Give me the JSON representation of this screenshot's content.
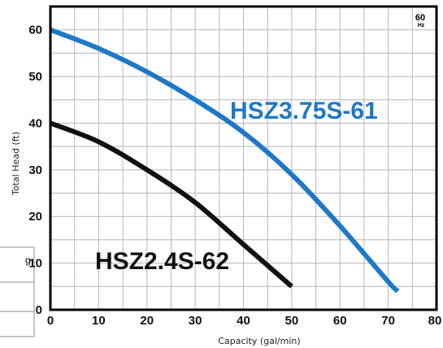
{
  "chart_data": {
    "type": "line",
    "title": "",
    "xlabel": "Capacity (gal/min)",
    "ylabel": "Total Head (ft)",
    "xlim": [
      0,
      80
    ],
    "ylim": [
      0,
      65
    ],
    "x_ticks": [
      0,
      10,
      20,
      30,
      40,
      50,
      60,
      70,
      80
    ],
    "y_ticks": [
      0,
      10,
      20,
      30,
      40,
      50,
      60
    ],
    "grid": true,
    "frequency_badge": {
      "value": "60",
      "unit": "Hz"
    },
    "series": [
      {
        "name": "HSZ3.75S-61",
        "color": "#1e78c8",
        "x": [
          0,
          10,
          20,
          30,
          40,
          50,
          60,
          70,
          72
        ],
        "y": [
          60,
          56,
          51,
          45,
          38,
          29,
          18,
          6,
          4
        ]
      },
      {
        "name": "HSZ2.4S-62",
        "color": "#111111",
        "x": [
          0,
          10,
          20,
          30,
          40,
          50
        ],
        "y": [
          40,
          36,
          30,
          23,
          14,
          5
        ]
      }
    ]
  },
  "side_panel": {
    "letter": "g"
  }
}
